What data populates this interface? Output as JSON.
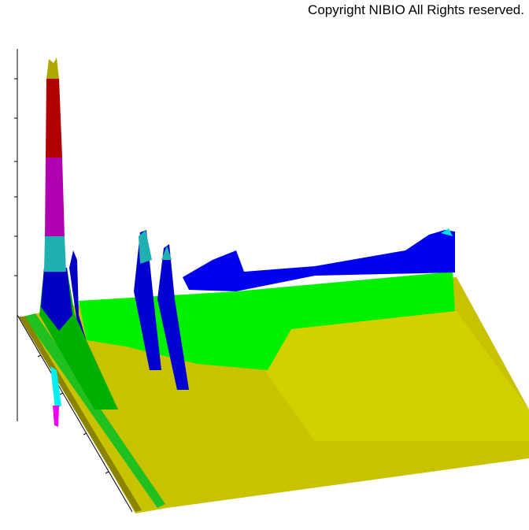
{
  "header": {
    "copyright": "Copyright NIBIO All Rights reserved."
  }
}
